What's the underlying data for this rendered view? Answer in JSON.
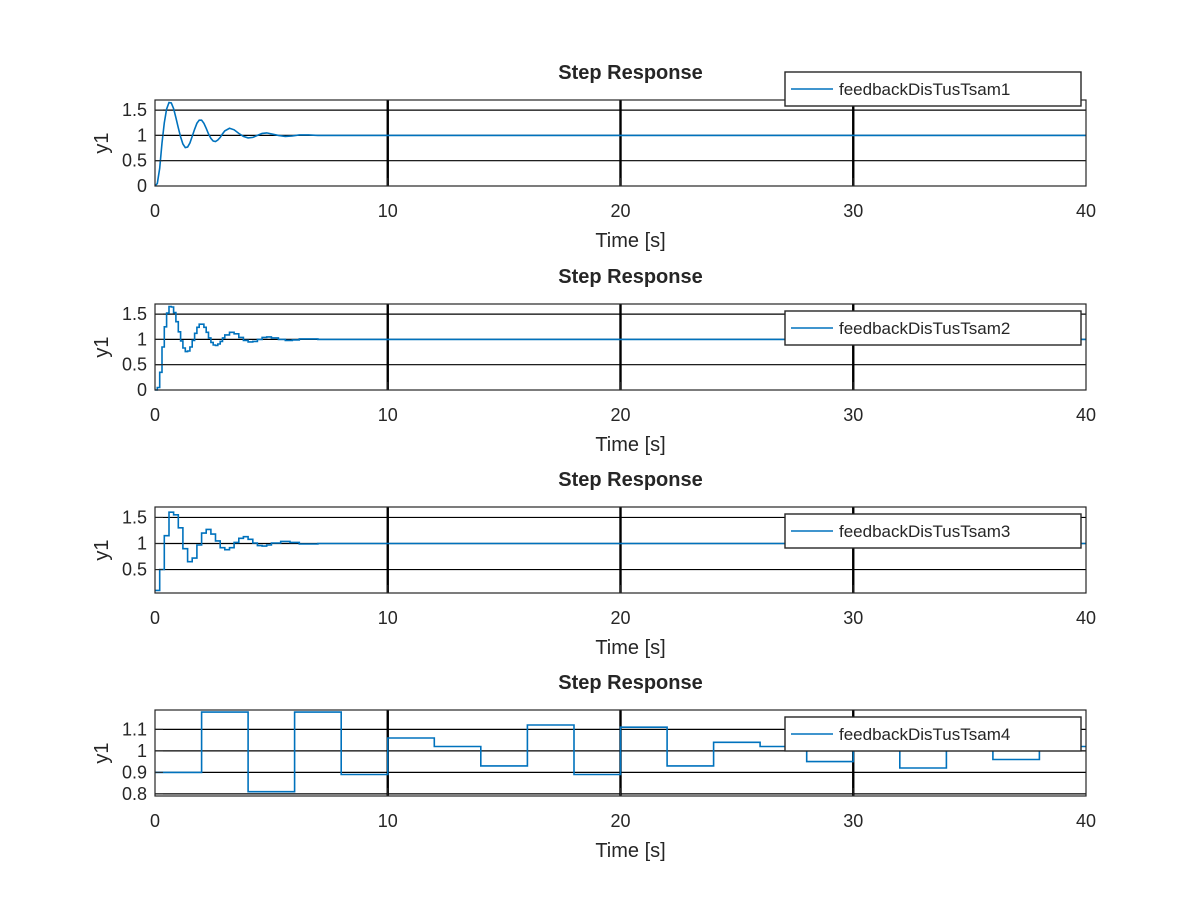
{
  "figure": {
    "background": "#ffffff"
  },
  "colors": {
    "line": "#0072BD",
    "grid": "#000000",
    "axis": "#262626",
    "legend_border": "#262626"
  },
  "chart_data": [
    {
      "type": "line",
      "title": "Step Response",
      "xlabel": "Time [s]",
      "ylabel": "y1",
      "xlim": [
        0,
        40
      ],
      "ylim": [
        0,
        1.7
      ],
      "xticks": [
        0,
        10,
        20,
        30,
        40
      ],
      "yticks": [
        0,
        0.5,
        1,
        1.5
      ],
      "ytick_labels": [
        "0",
        "0.5",
        "1",
        "1.5"
      ],
      "grid": true,
      "legend_placement": "top-right-outside",
      "series": [
        {
          "name": "feedbackDisTusTsam1",
          "step": false,
          "x": [
            0,
            0.1,
            0.2,
            0.3,
            0.4,
            0.5,
            0.6,
            0.7,
            0.8,
            0.9,
            1.0,
            1.1,
            1.2,
            1.3,
            1.4,
            1.5,
            1.6,
            1.7,
            1.8,
            1.9,
            2.0,
            2.1,
            2.2,
            2.3,
            2.4,
            2.5,
            2.6,
            2.7,
            2.8,
            2.9,
            3.0,
            3.2,
            3.4,
            3.6,
            3.8,
            4.0,
            4.2,
            4.4,
            4.6,
            4.8,
            5.0,
            5.3,
            5.6,
            5.9,
            6.2,
            6.6,
            7.0,
            7.5
          ],
          "y": [
            0,
            0.05,
            0.35,
            0.85,
            1.25,
            1.52,
            1.65,
            1.64,
            1.53,
            1.35,
            1.15,
            0.97,
            0.83,
            0.76,
            0.77,
            0.85,
            0.98,
            1.12,
            1.24,
            1.3,
            1.3,
            1.24,
            1.14,
            1.03,
            0.94,
            0.89,
            0.88,
            0.91,
            0.96,
            1.03,
            1.09,
            1.14,
            1.11,
            1.04,
            0.98,
            0.95,
            0.96,
            1.0,
            1.04,
            1.05,
            1.03,
            1.0,
            0.98,
            0.99,
            1.01,
            1.01,
            1.0,
            1.0
          ]
        }
      ]
    },
    {
      "type": "line",
      "title": "Step Response",
      "xlabel": "Time [s]",
      "ylabel": "y1",
      "xlim": [
        0,
        40
      ],
      "ylim": [
        0,
        1.7
      ],
      "xticks": [
        0,
        10,
        20,
        30,
        40
      ],
      "yticks": [
        0,
        0.5,
        1,
        1.5
      ],
      "ytick_labels": [
        "0",
        "0.5",
        "1",
        "1.5"
      ],
      "grid": true,
      "legend_placement": "top-right",
      "series": [
        {
          "name": "feedbackDisTusTsam2",
          "step": true,
          "x": [
            0,
            0.1,
            0.2,
            0.3,
            0.4,
            0.5,
            0.6,
            0.7,
            0.8,
            0.9,
            1.0,
            1.1,
            1.2,
            1.3,
            1.4,
            1.5,
            1.6,
            1.7,
            1.8,
            1.9,
            2.0,
            2.1,
            2.2,
            2.3,
            2.4,
            2.5,
            2.6,
            2.7,
            2.8,
            2.9,
            3.0,
            3.2,
            3.4,
            3.6,
            3.8,
            4.0,
            4.2,
            4.4,
            4.6,
            4.8,
            5.0,
            5.3,
            5.6,
            5.9,
            6.2,
            6.6,
            7.0,
            7.5,
            8.0,
            10.0
          ],
          "y": [
            0,
            0.05,
            0.35,
            0.85,
            1.25,
            1.52,
            1.65,
            1.64,
            1.53,
            1.35,
            1.15,
            0.97,
            0.83,
            0.76,
            0.77,
            0.85,
            0.98,
            1.12,
            1.24,
            1.3,
            1.3,
            1.24,
            1.14,
            1.03,
            0.94,
            0.89,
            0.88,
            0.91,
            0.96,
            1.03,
            1.09,
            1.14,
            1.11,
            1.04,
            0.98,
            0.95,
            0.96,
            1.0,
            1.04,
            1.05,
            1.03,
            1.0,
            0.98,
            0.99,
            1.01,
            1.01,
            1.0,
            1.0,
            1.0,
            1.0
          ]
        }
      ]
    },
    {
      "type": "line",
      "title": "Step Response",
      "xlabel": "Time [s]",
      "ylabel": "y1",
      "xlim": [
        0,
        40
      ],
      "ylim": [
        0.05,
        1.7
      ],
      "xticks": [
        0,
        10,
        20,
        30,
        40
      ],
      "yticks": [
        0.5,
        1,
        1.5
      ],
      "ytick_labels": [
        "0.5",
        "1",
        "1.5"
      ],
      "grid": true,
      "legend_placement": "top-right",
      "series": [
        {
          "name": "feedbackDisTusTsam3",
          "step": true,
          "x": [
            0,
            0.2,
            0.4,
            0.6,
            0.8,
            1.0,
            1.2,
            1.4,
            1.6,
            1.8,
            2.0,
            2.2,
            2.4,
            2.6,
            2.8,
            3.0,
            3.2,
            3.4,
            3.6,
            3.8,
            4.0,
            4.2,
            4.4,
            4.6,
            4.8,
            5.0,
            5.4,
            5.8,
            6.2,
            6.6,
            7.0,
            8.0,
            10.0
          ],
          "y": [
            0.1,
            0.5,
            1.15,
            1.6,
            1.55,
            1.3,
            0.9,
            0.65,
            0.72,
            0.97,
            1.2,
            1.27,
            1.18,
            1.05,
            0.92,
            0.88,
            0.92,
            1.02,
            1.1,
            1.13,
            1.08,
            1.01,
            0.96,
            0.95,
            0.97,
            1.01,
            1.04,
            1.02,
            0.99,
            0.99,
            1.0,
            1.0,
            1.0
          ]
        }
      ]
    },
    {
      "type": "line",
      "title": "Step Response",
      "xlabel": "Time [s]",
      "ylabel": "y1",
      "xlim": [
        0,
        40
      ],
      "ylim": [
        0.79,
        1.19
      ],
      "xticks": [
        0,
        10,
        20,
        30,
        40
      ],
      "yticks": [
        0.8,
        0.9,
        1,
        1.1
      ],
      "ytick_labels": [
        "0.8",
        "0.9",
        "1",
        "1.1"
      ],
      "grid": true,
      "legend_placement": "top-right",
      "series": [
        {
          "name": "feedbackDisTusTsam4",
          "step": true,
          "x": [
            0,
            2,
            4,
            6,
            8,
            10,
            12,
            14,
            16,
            18,
            20,
            22,
            24,
            26,
            28,
            30,
            32,
            34,
            36,
            38,
            40
          ],
          "y": [
            0.9,
            1.18,
            0.81,
            1.18,
            0.89,
            1.06,
            1.02,
            0.93,
            1.12,
            0.89,
            1.11,
            0.93,
            1.04,
            1.02,
            0.95,
            1.03,
            0.92,
            1.02,
            0.96,
            1.02,
            1.02
          ]
        }
      ]
    }
  ]
}
